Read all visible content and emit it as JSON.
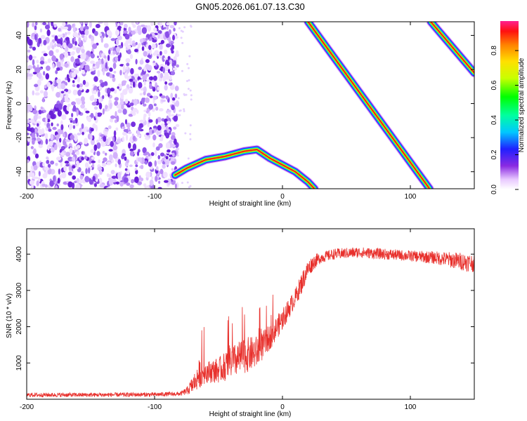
{
  "title": "GN05.2026.061.07.13.C30",
  "colors": {
    "snr_line": "#e8302c",
    "frame": "#000000",
    "noise": "#7b2fe6",
    "track_core": "#e03020"
  },
  "chart_data": [
    {
      "type": "heatmap",
      "name": "spectrogram",
      "xlabel": "Height of straight line (km)",
      "ylabel": "Frequency (Hz)",
      "xlim": [
        -200,
        150
      ],
      "ylim": [
        -50,
        48
      ],
      "xticks": [
        -200,
        -100,
        0,
        100
      ],
      "yticks": [
        -40,
        -20,
        0,
        20,
        40
      ],
      "xtick_labels": [
        "-200",
        "-100",
        "0",
        "100"
      ],
      "ytick_labels": [
        "-40",
        "-20",
        "0",
        "20",
        "40"
      ],
      "noise_region": {
        "x": [
          -200,
          -82
        ],
        "amplitude": [
          0.05,
          0.3
        ]
      },
      "tracks": [
        {
          "name": "arc",
          "points": [
            [
              -84,
              -42
            ],
            [
              -75,
              -38
            ],
            [
              -60,
              -33
            ],
            [
              -45,
              -31
            ],
            [
              -30,
              -28
            ],
            [
              -20,
              -27
            ],
            [
              -10,
              -32
            ],
            [
              0,
              -36
            ],
            [
              10,
              -40
            ],
            [
              20,
              -46
            ],
            [
              25,
              -50
            ]
          ],
          "amplitude": 0.9
        },
        {
          "name": "line1",
          "points": [
            [
              20,
              48
            ],
            [
              115,
              -50
            ]
          ],
          "amplitude": 0.95
        },
        {
          "name": "line2",
          "points": [
            [
              116,
              48
            ],
            [
              150,
              18
            ]
          ],
          "amplitude": 0.95
        }
      ],
      "colorbar": {
        "label": "Normalized spectral amplitude",
        "range": [
          0,
          0.97
        ],
        "ticks": [
          0.0,
          0.2,
          0.4,
          0.6,
          0.8
        ],
        "tick_labels": [
          "0.0",
          "0.2",
          "0.4",
          "0.6",
          "0.8"
        ]
      }
    },
    {
      "type": "line",
      "name": "snr",
      "xlabel": "Height of straight line (km)",
      "ylabel": "SNR (10 * v/v)",
      "xlim": [
        -200,
        150
      ],
      "ylim": [
        0,
        4700
      ],
      "xticks": [
        -200,
        -100,
        0,
        100
      ],
      "yticks": [
        1000,
        2000,
        3000,
        4000
      ],
      "xtick_labels": [
        "-200",
        "-100",
        "0",
        "100"
      ],
      "ytick_labels": [
        "1000",
        "2000",
        "3000",
        "4000"
      ],
      "series": [
        {
          "name": "SNR",
          "x": [
            -200,
            -150,
            -100,
            -80,
            -75,
            -70,
            -65,
            -60,
            -50,
            -40,
            -30,
            -20,
            -10,
            0,
            10,
            15,
            20,
            25,
            30,
            40,
            60,
            80,
            100,
            120,
            140,
            150
          ],
          "y": [
            120,
            120,
            130,
            150,
            220,
            400,
            700,
            750,
            800,
            1000,
            1200,
            1300,
            1700,
            2200,
            2800,
            3200,
            3600,
            3800,
            3900,
            4000,
            4050,
            4000,
            3950,
            3900,
            3800,
            3750
          ],
          "noise": [
            60,
            60,
            60,
            60,
            100,
            250,
            400,
            300,
            350,
            450,
            500,
            450,
            350,
            300,
            250,
            300,
            250,
            200,
            150,
            150,
            150,
            150,
            150,
            180,
            250,
            250
          ]
        }
      ]
    }
  ]
}
